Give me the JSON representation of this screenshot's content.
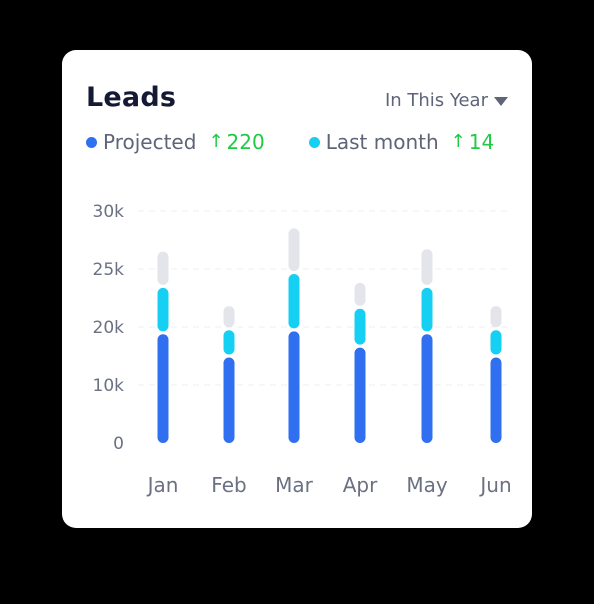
{
  "card": {
    "title": "Leads",
    "filter_label": "In This Year"
  },
  "legend": [
    {
      "label": "Projected",
      "delta": "220",
      "color": "#2f6ff0"
    },
    {
      "label": "Last month",
      "delta": "14",
      "color": "#15d0f2"
    }
  ],
  "colors": {
    "projected": "#2f6ff0",
    "last_month": "#15d0f2",
    "remainder": "#e4e5ea",
    "positive_delta": "#1fca45"
  },
  "chart_data": {
    "type": "bar",
    "stacked": true,
    "title": "Leads",
    "categories": [
      "Jan",
      "Feb",
      "Mar",
      "Apr",
      "May",
      "Jun"
    ],
    "y_ticks": [
      "0",
      "10k",
      "20k",
      "25k",
      "30k"
    ],
    "y_tick_values": [
      0,
      10000,
      20000,
      25000,
      30000
    ],
    "series": [
      {
        "name": "Projected",
        "values": [
          19000,
          15000,
          19500,
          16700,
          19000,
          15000
        ]
      },
      {
        "name": "Last month",
        "values": [
          4500,
          4700,
          5200,
          5000,
          4500,
          4700
        ]
      },
      {
        "values": [
          3000,
          2100,
          3800,
          2100,
          3200,
          2100
        ]
      }
    ],
    "grid": true
  }
}
